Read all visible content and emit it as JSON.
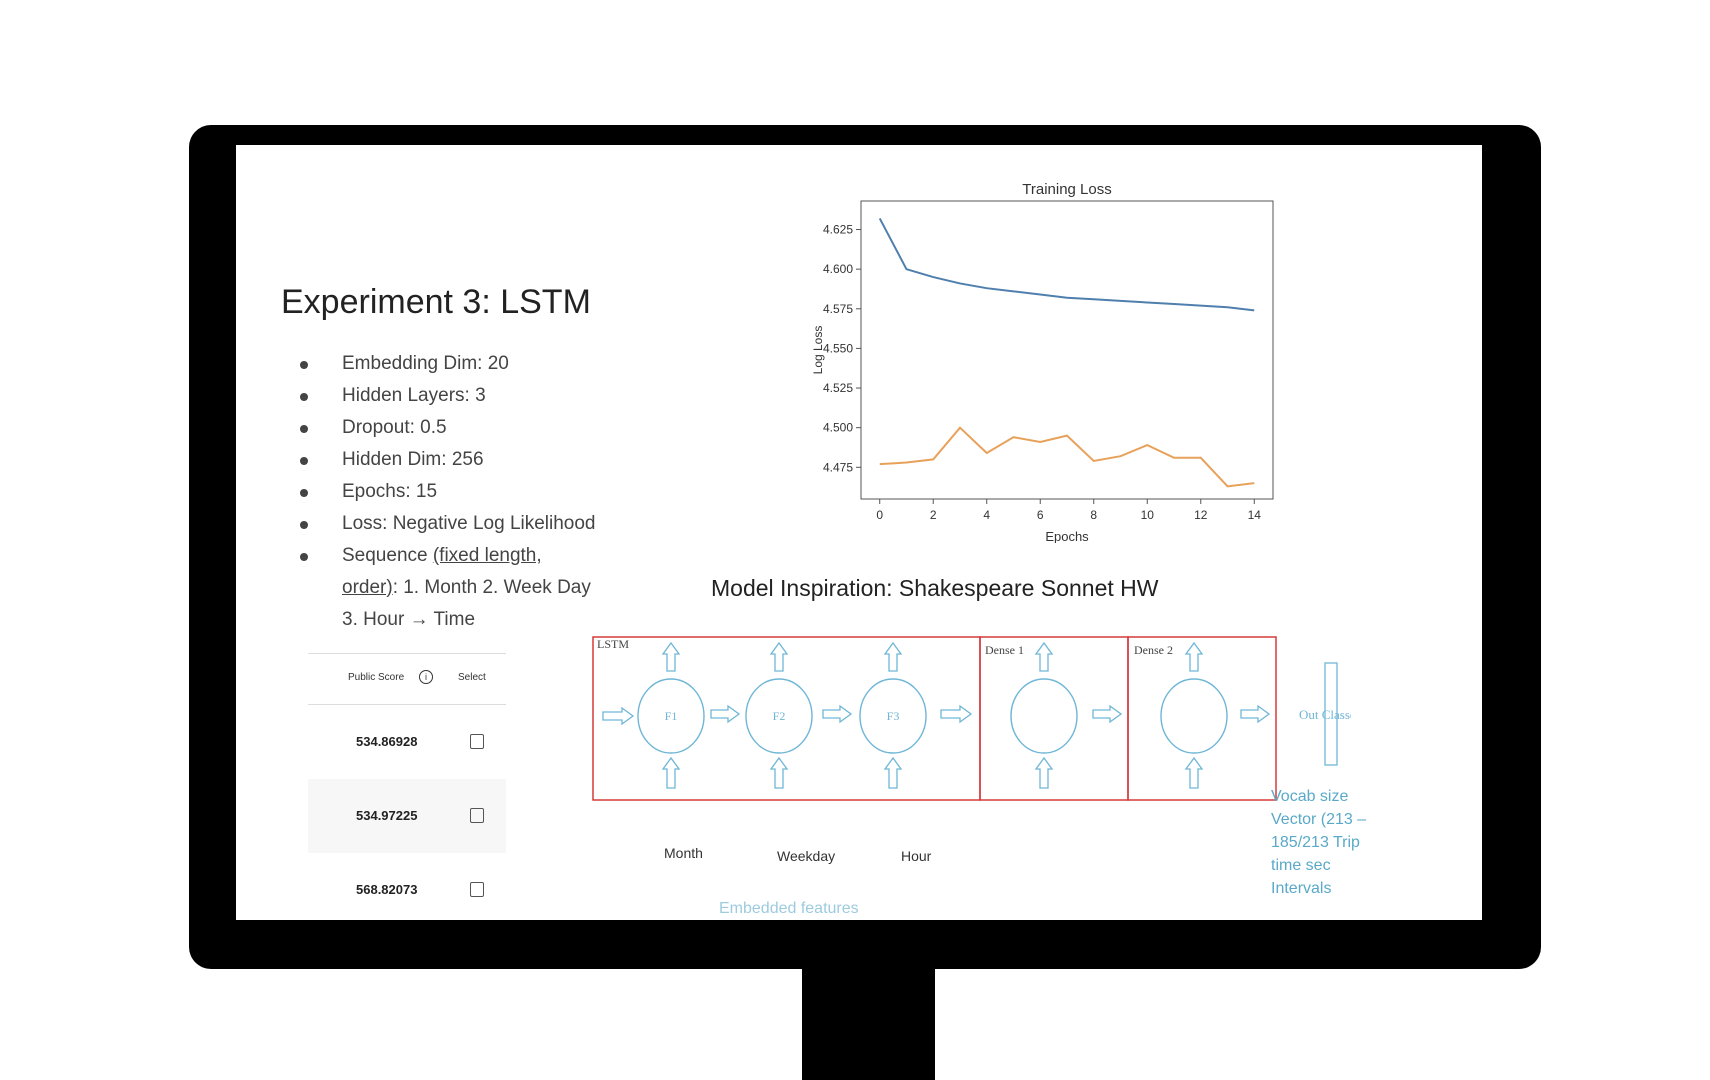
{
  "slide": {
    "title": "Experiment 3: LSTM",
    "bullets": [
      "Embedding Dim: 20",
      "Hidden Layers: 3",
      "Dropout: 0.5",
      "Hidden Dim: 256",
      "Epochs: 15",
      "Loss: Negative Log Likelihood"
    ],
    "sequence_bullet": {
      "prefix": "Sequence ",
      "underlined": "(fixed length, order)",
      "suffix": ": 1. Month 2. Week Day 3. Hour → Time"
    }
  },
  "score_table": {
    "header_score": "Public Score",
    "header_info_icon": "info-icon",
    "header_select": "Select",
    "rows": [
      {
        "score": "534.86928"
      },
      {
        "score": "534.97225"
      },
      {
        "score": "568.82073"
      }
    ]
  },
  "chart_data": {
    "type": "line",
    "title": "Training Loss",
    "xlabel": "Epochs",
    "ylabel": "Log Loss",
    "x": [
      0,
      1,
      2,
      3,
      4,
      5,
      6,
      7,
      8,
      9,
      10,
      11,
      12,
      13,
      14
    ],
    "xticks": [
      0,
      2,
      4,
      6,
      8,
      10,
      12,
      14
    ],
    "yticks": [
      4.475,
      4.5,
      4.525,
      4.55,
      4.575,
      4.6,
      4.625
    ],
    "ytick_labels": [
      "4.475",
      "4.500",
      "4.525",
      "4.550",
      "4.575",
      "4.600",
      "4.625"
    ],
    "ylim": [
      4.455,
      4.643
    ],
    "xlim": [
      -0.7,
      14.7
    ],
    "grid": false,
    "series": [
      {
        "color": "#4f7fad",
        "values": [
          4.632,
          4.6,
          4.595,
          4.591,
          4.588,
          4.586,
          4.584,
          4.582,
          4.581,
          4.58,
          4.579,
          4.578,
          4.577,
          4.576,
          4.574
        ]
      },
      {
        "color": "#e8a15a",
        "values": [
          4.477,
          4.478,
          4.48,
          4.5,
          4.484,
          4.494,
          4.491,
          4.495,
          4.479,
          4.482,
          4.489,
          4.481,
          4.481,
          4.463,
          4.465
        ]
      }
    ]
  },
  "inspiration": "Model Inspiration: Shakespeare Sonnet HW",
  "diagram": {
    "lstm_label": "LSTM",
    "dense1_label": "Dense 1",
    "dense2_label": "Dense 2",
    "nodes": [
      "F1",
      "F2",
      "F3"
    ],
    "features": [
      "Month",
      "Weekday",
      "Hour"
    ],
    "out_label": "Out Classes",
    "side_note": "Vocab size Vector (213 – 185/213 Trip time sec Intervals",
    "embedded_label": "Embedded features",
    "colors": {
      "box": "#d63a3a",
      "shape": "#6fb6d6"
    }
  }
}
